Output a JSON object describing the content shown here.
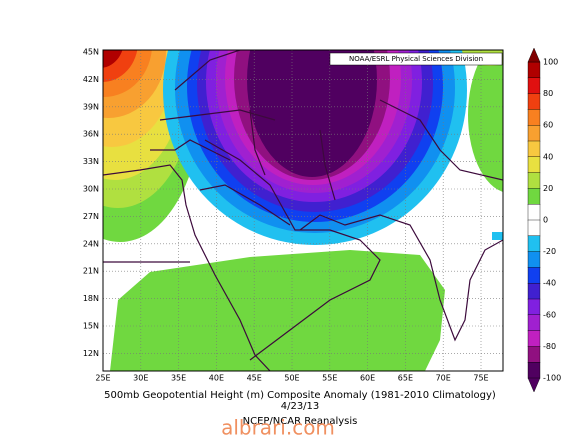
{
  "header": {
    "credit": "NOAA/ESRL Physical Sciences Division"
  },
  "map": {
    "lon_labels": [
      "25E",
      "30E",
      "35E",
      "40E",
      "45E",
      "50E",
      "55E",
      "60E",
      "65E",
      "70E",
      "75E"
    ],
    "lat_labels": [
      "45N",
      "42N",
      "39N",
      "36N",
      "33N",
      "30N",
      "27N",
      "24N",
      "21N",
      "18N",
      "15N",
      "12N"
    ]
  },
  "colorbar": {
    "ticks": [
      100,
      80,
      60,
      40,
      20,
      0,
      -20,
      -40,
      -60,
      -80,
      -100
    ],
    "colors": [
      "#b00000",
      "#e01010",
      "#f04010",
      "#f88020",
      "#f8a030",
      "#f8c840",
      "#e8e040",
      "#b0e040",
      "#70d840",
      "#ffffff",
      "#ffffff",
      "#20c0f0",
      "#1090f0",
      "#1040f0",
      "#4020d0",
      "#8020e0",
      "#a020d0",
      "#c020c0",
      "#901080",
      "#500060"
    ]
  },
  "caption": {
    "title": "500mb Geopotential Height (m) Composite Anomaly (1981-2010 Climatology)",
    "date": "4/23/13",
    "source": "NCEP/NCAR Reanalysis"
  },
  "watermark": "albrari.com"
}
